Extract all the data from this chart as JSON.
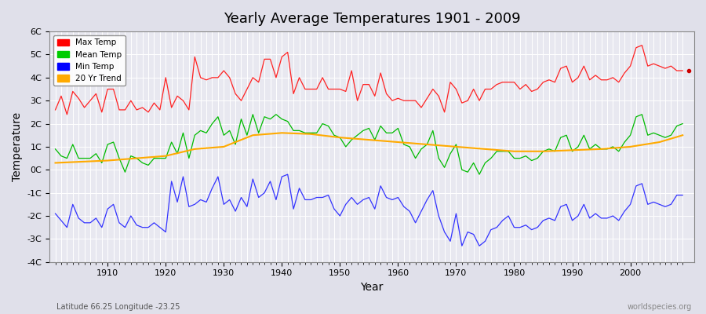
{
  "title": "Yearly Average Temperatures 1901 - 2009",
  "xlabel": "Year",
  "ylabel": "Temperature",
  "subtitle_left": "Latitude 66.25 Longitude -23.25",
  "subtitle_right": "worldspecies.org",
  "bg_color": "#e8e8f0",
  "plot_bg_color": "#e8e8f0",
  "legend_labels": [
    "Max Temp",
    "Mean Temp",
    "Min Temp",
    "20 Yr Trend"
  ],
  "legend_colors": [
    "#ff0000",
    "#00cc00",
    "#0000ff",
    "#ffaa00"
  ],
  "ylim": [
    -4,
    6
  ],
  "yticks": [
    -4,
    -3,
    -2,
    -1,
    0,
    1,
    2,
    3,
    4,
    5,
    6
  ],
  "ytick_labels": [
    "-4C",
    "-3C",
    "-2C",
    "-1C",
    "0C",
    "1C",
    "2C",
    "3C",
    "4C",
    "5C",
    "6C"
  ],
  "xstart": 1901,
  "xend": 2009,
  "max_temp": [
    2.6,
    3.2,
    2.4,
    3.4,
    3.1,
    2.7,
    3.0,
    3.3,
    2.5,
    3.5,
    3.5,
    2.6,
    2.6,
    3.0,
    2.6,
    2.7,
    2.5,
    2.9,
    2.6,
    4.0,
    2.7,
    3.2,
    3.0,
    2.6,
    4.9,
    4.0,
    3.9,
    4.0,
    4.0,
    4.3,
    4.0,
    3.3,
    3.0,
    3.5,
    4.0,
    3.8,
    4.8,
    4.8,
    4.0,
    4.9,
    5.1,
    3.3,
    4.0,
    3.5,
    3.5,
    3.5,
    4.0,
    3.5,
    3.5,
    3.5,
    3.4,
    4.3,
    3.0,
    3.7,
    3.7,
    3.2,
    4.2,
    3.3,
    3.0,
    3.1,
    3.0,
    3.0,
    3.0,
    2.7,
    3.1,
    3.5,
    3.2,
    2.5,
    3.8,
    3.5,
    2.9,
    3.0,
    3.5,
    3.0,
    3.5,
    3.5,
    3.7,
    3.8,
    3.8,
    3.8,
    3.5,
    3.7,
    3.4,
    3.5,
    3.8,
    3.9,
    3.8,
    4.4,
    4.5,
    3.8,
    4.0,
    4.5,
    3.9,
    4.1,
    3.9,
    3.9,
    4.0,
    3.8,
    4.2,
    4.5,
    5.3,
    5.4,
    4.5,
    4.6,
    4.5,
    4.4,
    4.5,
    4.3,
    4.3
  ],
  "mean_temp": [
    0.9,
    0.6,
    0.5,
    1.1,
    0.5,
    0.5,
    0.5,
    0.7,
    0.3,
    1.1,
    1.2,
    0.5,
    -0.1,
    0.6,
    0.5,
    0.3,
    0.2,
    0.5,
    0.5,
    0.5,
    1.2,
    0.7,
    1.6,
    0.5,
    1.5,
    1.7,
    1.6,
    2.0,
    2.3,
    1.5,
    1.7,
    1.1,
    2.2,
    1.5,
    2.4,
    1.6,
    2.3,
    2.2,
    2.4,
    2.2,
    2.1,
    1.7,
    1.7,
    1.6,
    1.6,
    1.6,
    2.0,
    1.9,
    1.5,
    1.4,
    1.0,
    1.3,
    1.5,
    1.7,
    1.8,
    1.3,
    1.9,
    1.6,
    1.6,
    1.8,
    1.1,
    1.0,
    0.5,
    0.9,
    1.1,
    1.7,
    0.5,
    0.1,
    0.7,
    1.1,
    0.0,
    -0.1,
    0.3,
    -0.2,
    0.3,
    0.5,
    0.8,
    0.8,
    0.8,
    0.5,
    0.5,
    0.6,
    0.4,
    0.5,
    0.8,
    0.9,
    0.8,
    1.4,
    1.5,
    0.8,
    1.0,
    1.5,
    0.9,
    1.1,
    0.9,
    0.9,
    1.0,
    0.8,
    1.2,
    1.5,
    2.3,
    2.4,
    1.5,
    1.6,
    1.5,
    1.4,
    1.5,
    1.9,
    2.0
  ],
  "min_temp": [
    -1.9,
    -2.2,
    -2.5,
    -1.5,
    -2.1,
    -2.3,
    -2.3,
    -2.1,
    -2.5,
    -1.7,
    -1.5,
    -2.3,
    -2.5,
    -2.0,
    -2.4,
    -2.5,
    -2.5,
    -2.3,
    -2.5,
    -2.7,
    -0.5,
    -1.4,
    -0.3,
    -1.6,
    -1.5,
    -1.3,
    -1.4,
    -0.8,
    -0.3,
    -1.5,
    -1.3,
    -1.8,
    -1.2,
    -1.6,
    -0.4,
    -1.2,
    -1.0,
    -0.5,
    -1.3,
    -0.3,
    -0.2,
    -1.7,
    -0.8,
    -1.3,
    -1.3,
    -1.2,
    -1.2,
    -1.1,
    -1.7,
    -2.0,
    -1.5,
    -1.2,
    -1.5,
    -1.3,
    -1.2,
    -1.7,
    -0.7,
    -1.2,
    -1.3,
    -1.2,
    -1.6,
    -1.8,
    -2.3,
    -1.8,
    -1.3,
    -0.9,
    -2.0,
    -2.7,
    -3.1,
    -1.9,
    -3.3,
    -2.7,
    -2.8,
    -3.3,
    -3.1,
    -2.6,
    -2.5,
    -2.2,
    -2.0,
    -2.5,
    -2.5,
    -2.4,
    -2.6,
    -2.5,
    -2.2,
    -2.1,
    -2.2,
    -1.6,
    -1.5,
    -2.2,
    -2.0,
    -1.5,
    -2.1,
    -1.9,
    -2.1,
    -2.1,
    -2.0,
    -2.2,
    -1.8,
    -1.5,
    -0.7,
    -0.6,
    -1.5,
    -1.4,
    -1.5,
    -1.6,
    -1.5,
    -1.1,
    -1.1
  ],
  "trend_x": [
    1901,
    1910,
    1920,
    1925,
    1930,
    1935,
    1940,
    1945,
    1950,
    1955,
    1960,
    1965,
    1970,
    1975,
    1980,
    1985,
    1990,
    1995,
    2000,
    2005,
    2009
  ],
  "trend_y": [
    0.3,
    0.4,
    0.6,
    0.9,
    1.0,
    1.5,
    1.6,
    1.55,
    1.4,
    1.3,
    1.2,
    1.1,
    1.0,
    0.9,
    0.8,
    0.8,
    0.85,
    0.9,
    1.0,
    1.2,
    1.5
  ]
}
